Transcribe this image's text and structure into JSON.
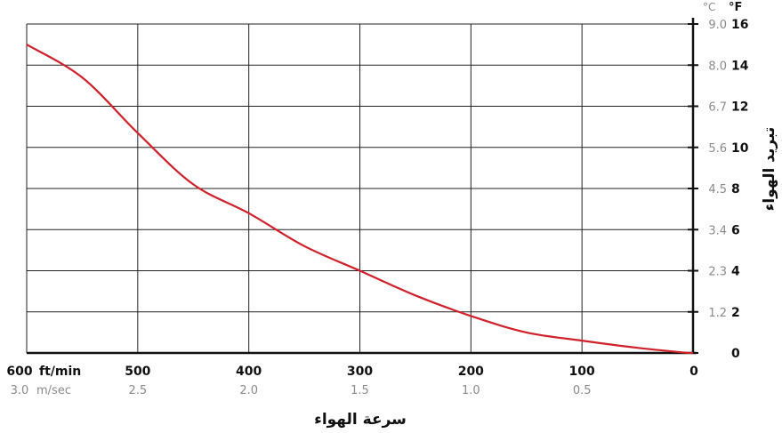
{
  "chart_data": {
    "type": "line",
    "xlabel": "سرعة الهواء",
    "ylabel": "تبريد الهواء",
    "x_unit_primary": "ft/min",
    "x_unit_secondary": "m/sec",
    "y_unit_primary": "°F",
    "y_unit_secondary": "°C",
    "x_ticks_primary": [
      "600",
      "500",
      "400",
      "300",
      "200",
      "100",
      "0"
    ],
    "x_ticks_secondary": [
      "3.0",
      "2.5",
      "2.0",
      "1.5",
      "1.0",
      "0.5",
      ""
    ],
    "x_tick_values": [
      600,
      500,
      400,
      300,
      200,
      100,
      0
    ],
    "y_ticks_primary": [
      "0",
      "2",
      "4",
      "6",
      "8",
      "10",
      "12",
      "14",
      "16"
    ],
    "y_ticks_secondary": [
      "",
      "1.2",
      "2.3",
      "3.4",
      "4.5",
      "5.6",
      "6.7",
      "8.0",
      "9.0"
    ],
    "y_tick_values": [
      0,
      2,
      4,
      6,
      8,
      10,
      12,
      14,
      16
    ],
    "xlim": [
      600,
      0
    ],
    "ylim": [
      0,
      16
    ],
    "grid": true,
    "line_color": "#d0202a",
    "series": [
      {
        "x": [
          600,
          550,
          500,
          450,
          400,
          350,
          300,
          250,
          200,
          150,
          100,
          50,
          10,
          0
        ],
        "y": [
          15.0,
          13.4,
          10.7,
          8.2,
          6.8,
          5.2,
          4.0,
          2.8,
          1.8,
          1.0,
          0.6,
          0.25,
          0.03,
          0
        ]
      }
    ]
  }
}
